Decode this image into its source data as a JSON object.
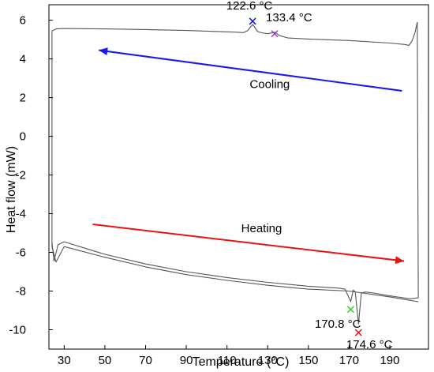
{
  "chart_data": {
    "type": "line",
    "title": "",
    "xlabel": "Temperature (°C)",
    "ylabel": "Heat flow (mW)",
    "xlim": [
      22.5,
      209
    ],
    "ylim": [
      -11,
      6.8
    ],
    "x_ticks": [
      30,
      50,
      70,
      90,
      110,
      130,
      150,
      170,
      190
    ],
    "y_ticks": [
      6,
      4,
      2,
      0,
      -2,
      -4,
      -6,
      -8,
      -10
    ],
    "x_tick_labels": [
      "30",
      "50",
      "70",
      "90",
      "110",
      "130",
      "150",
      "170",
      "190"
    ],
    "y_tick_labels": [
      "6",
      "4",
      "2",
      "0",
      "-2",
      "-4",
      "-6",
      "-8",
      "-10"
    ],
    "grid": false,
    "series": [
      {
        "color": "#555555",
        "x": [
          24,
          26,
          30,
          50,
          70,
          90,
          110,
          115,
          118,
          120,
          122.6,
          125,
          127,
          130,
          133.4,
          136,
          140,
          150,
          170,
          190,
          197,
          199.5,
          201,
          202.5,
          203.5
        ],
        "y": [
          5.45,
          5.55,
          5.57,
          5.55,
          5.52,
          5.47,
          5.4,
          5.38,
          5.36,
          5.45,
          5.78,
          5.42,
          5.35,
          5.3,
          5.38,
          5.2,
          5.08,
          5.03,
          4.95,
          4.82,
          4.75,
          4.7,
          4.95,
          5.4,
          5.9
        ]
      },
      {
        "color": "#555555",
        "x": [
          24,
          25,
          27,
          30,
          50,
          70,
          90,
          110,
          130,
          150,
          160,
          165,
          168,
          170.8,
          172,
          173,
          174.6,
          176,
          178,
          182,
          190,
          200,
          204
        ],
        "y": [
          -5.5,
          -6.45,
          -5.6,
          -5.45,
          -6.1,
          -6.6,
          -7.0,
          -7.3,
          -7.55,
          -7.75,
          -7.82,
          -7.85,
          -7.9,
          -8.55,
          -7.95,
          -8.05,
          -9.7,
          -8.1,
          -8.05,
          -8.1,
          -8.25,
          -8.4,
          -8.35
        ]
      },
      {
        "color": "#555555",
        "x": [
          24,
          26,
          30,
          50,
          70,
          90,
          110,
          130,
          150,
          170,
          190,
          204
        ],
        "y": [
          -5.7,
          -6.5,
          -5.7,
          -6.25,
          -6.75,
          -7.15,
          -7.45,
          -7.7,
          -7.9,
          -8.0,
          -8.3,
          -8.55
        ]
      }
    ],
    "annotations": [
      {
        "text": "122.6 °C",
        "x": 122.6,
        "y": 5.95,
        "marker": "x",
        "color": "#0000ff",
        "label_x": 121,
        "label_y": 6.55
      },
      {
        "text": "133.4 °C",
        "x": 133.4,
        "y": 5.3,
        "marker": "x",
        "color": "#9933cc",
        "label_x": 140.5,
        "label_y": 5.95
      },
      {
        "text": "170.8 °C",
        "x": 170.8,
        "y": -8.95,
        "marker": "x",
        "color": "#22cc22",
        "label_x": 164.5,
        "label_y": -9.9
      },
      {
        "text": "174.6 °C",
        "x": 174.6,
        "y": -10.15,
        "marker": "x",
        "color": "#ff0000",
        "label_x": 180,
        "label_y": -10.95
      }
    ],
    "arrows": [
      {
        "label": "Cooling",
        "color": "#1a1aee",
        "from": [
          196,
          2.35
        ],
        "to": [
          47,
          4.45
        ],
        "label_x": 131,
        "label_y": 2.5
      },
      {
        "label": "Heating",
        "color": "#ee1111",
        "from": [
          44,
          -4.55
        ],
        "to": [
          197,
          -6.45
        ],
        "label_x": 127,
        "label_y": -4.95
      }
    ]
  }
}
